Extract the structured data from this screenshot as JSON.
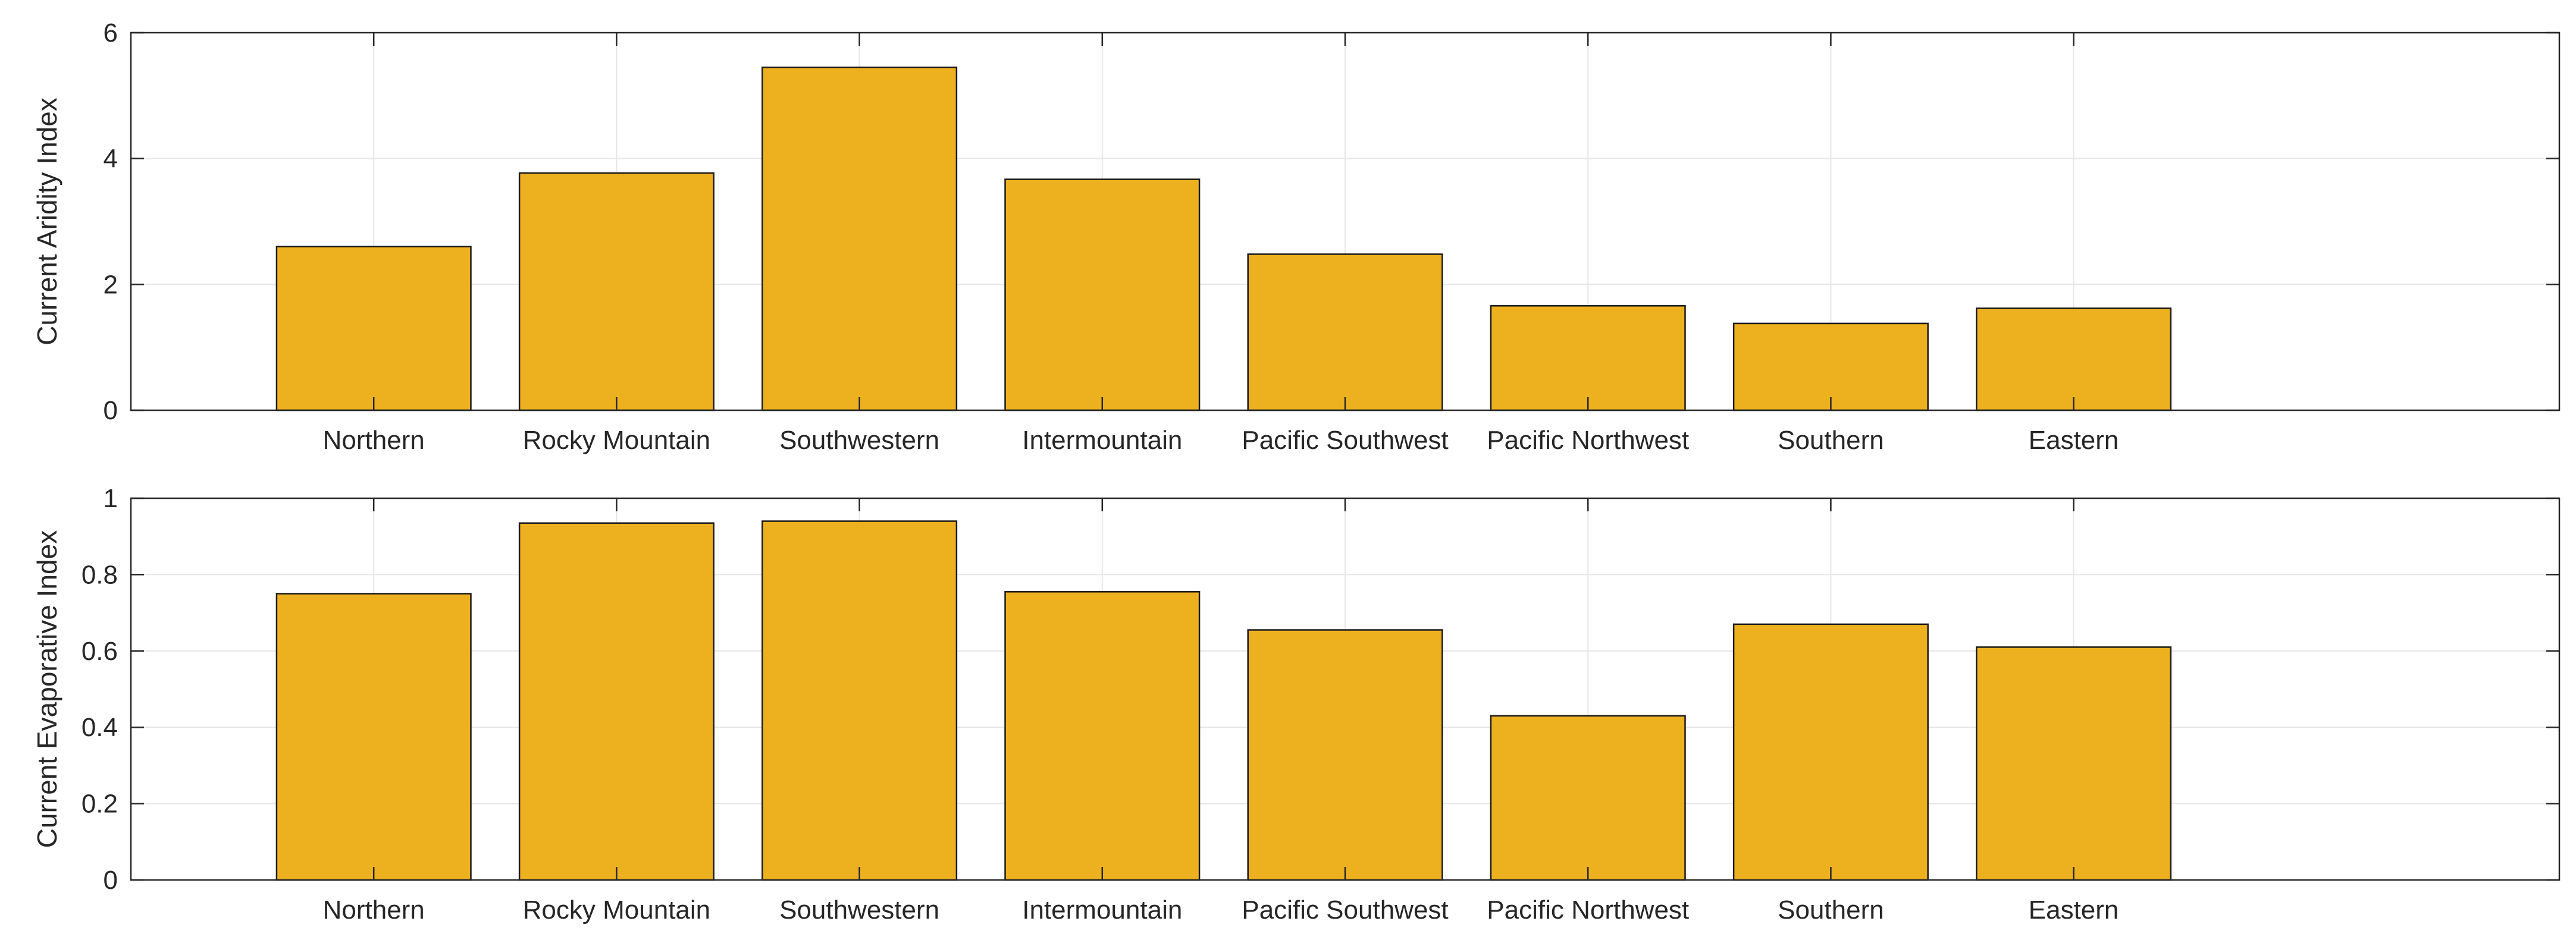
{
  "colors": {
    "bar_fill": "#EDB120",
    "bar_edge": "#1a1a1a",
    "axis": "#262626",
    "grid": "#e6e6e6",
    "background": "#ffffff"
  },
  "chart_data": [
    {
      "type": "bar",
      "title": "",
      "xlabel": "",
      "ylabel": "Current Aridity Index",
      "categories": [
        "Northern",
        "Rocky Mountain",
        "Southwestern",
        "Intermountain",
        "Pacific Southwest",
        "Pacific Northwest",
        "Southern",
        "Eastern"
      ],
      "values": [
        2.6,
        3.77,
        5.45,
        3.67,
        2.48,
        1.66,
        1.38,
        1.62
      ],
      "ylim": [
        0,
        6
      ],
      "xlim": [
        0,
        10
      ],
      "yticks": [
        0,
        2,
        4,
        6
      ],
      "ytick_labels": [
        "0",
        "2",
        "4",
        "6"
      ],
      "grid": true
    },
    {
      "type": "bar",
      "title": "",
      "xlabel": "",
      "ylabel": "Current Evaporative Index",
      "categories": [
        "Northern",
        "Rocky Mountain",
        "Southwestern",
        "Intermountain",
        "Pacific Southwest",
        "Pacific Northwest",
        "Southern",
        "Eastern"
      ],
      "values": [
        0.75,
        0.935,
        0.94,
        0.755,
        0.655,
        0.43,
        0.67,
        0.61
      ],
      "ylim": [
        0,
        1
      ],
      "xlim": [
        0,
        10
      ],
      "yticks": [
        0,
        0.2,
        0.4,
        0.6,
        0.8,
        1
      ],
      "ytick_labels": [
        "0",
        "0.2",
        "0.4",
        "0.6",
        "0.8",
        "1"
      ],
      "grid": true
    }
  ]
}
